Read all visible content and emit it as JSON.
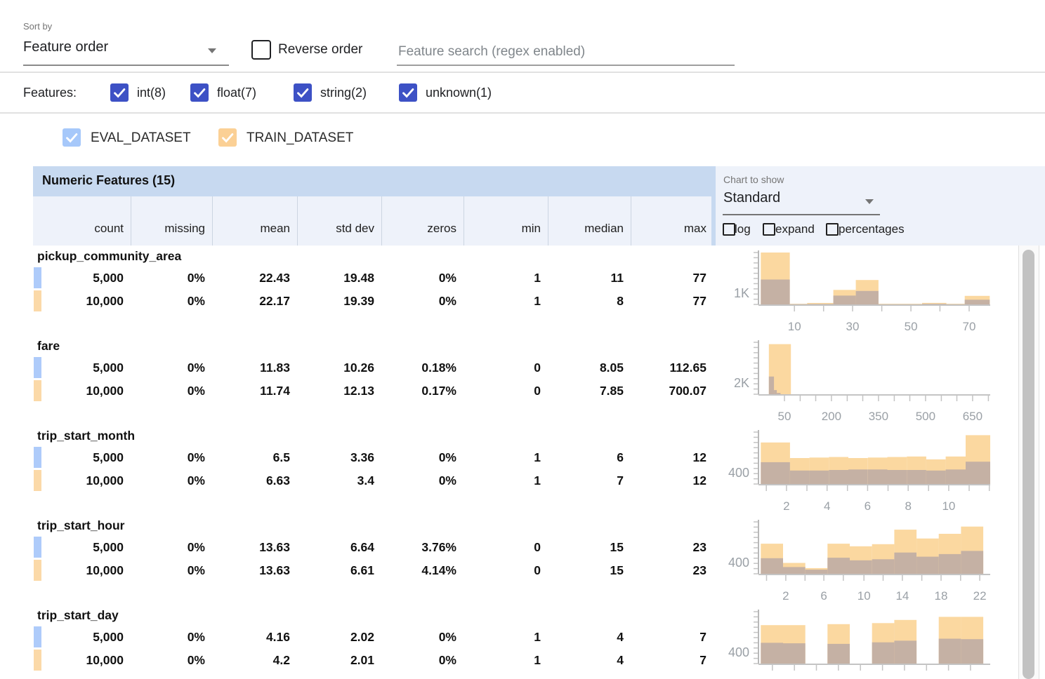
{
  "sort": {
    "label": "Sort by",
    "value": "Feature order"
  },
  "reverse_order_label": "Reverse order",
  "search_placeholder": "Feature search (regex enabled)",
  "filters": {
    "label": "Features:",
    "types": [
      {
        "label": "int(8)",
        "checked": true
      },
      {
        "label": "float(7)",
        "checked": true
      },
      {
        "label": "string(2)",
        "checked": true
      },
      {
        "label": "unknown(1)",
        "checked": true
      }
    ]
  },
  "datasets": [
    {
      "name": "EVAL_DATASET",
      "checkbox_color": "#a6c8fa",
      "swatch_color": "#aecbfa",
      "checked": true
    },
    {
      "name": "TRAIN_DATASET",
      "checkbox_color": "#fbd095",
      "swatch_color": "#fbd9a8",
      "checked": true
    }
  ],
  "table": {
    "title": "Numeric Features (15)",
    "columns": [
      "count",
      "missing",
      "mean",
      "std dev",
      "zeros",
      "min",
      "median",
      "max"
    ],
    "rows": [
      {
        "feature": "pickup_community_area",
        "eval": [
          "5,000",
          "0%",
          "22.43",
          "19.48",
          "0%",
          "1",
          "11",
          "77"
        ],
        "train": [
          "10,000",
          "0%",
          "22.17",
          "19.39",
          "0%",
          "1",
          "8",
          "77"
        ]
      },
      {
        "feature": "fare",
        "eval": [
          "5,000",
          "0%",
          "11.83",
          "10.26",
          "0.18%",
          "0",
          "8.05",
          "112.65"
        ],
        "train": [
          "10,000",
          "0%",
          "11.74",
          "12.13",
          "0.17%",
          "0",
          "7.85",
          "700.07"
        ]
      },
      {
        "feature": "trip_start_month",
        "eval": [
          "5,000",
          "0%",
          "6.5",
          "3.36",
          "0%",
          "1",
          "6",
          "12"
        ],
        "train": [
          "10,000",
          "0%",
          "6.63",
          "3.4",
          "0%",
          "1",
          "7",
          "12"
        ]
      },
      {
        "feature": "trip_start_hour",
        "eval": [
          "5,000",
          "0%",
          "13.63",
          "6.64",
          "3.76%",
          "0",
          "15",
          "23"
        ],
        "train": [
          "10,000",
          "0%",
          "13.63",
          "6.61",
          "4.14%",
          "0",
          "15",
          "23"
        ]
      },
      {
        "feature": "trip_start_day",
        "eval": [
          "5,000",
          "0%",
          "4.16",
          "2.02",
          "0%",
          "1",
          "4",
          "7"
        ],
        "train": [
          "10,000",
          "0%",
          "4.2",
          "2.01",
          "0%",
          "1",
          "4",
          "7"
        ]
      }
    ]
  },
  "chart_controls": {
    "label": "Chart to show",
    "value": "Standard",
    "options": [
      {
        "label": "log",
        "checked": false
      },
      {
        "label": "expand",
        "checked": false
      },
      {
        "label": "percentages",
        "checked": false
      }
    ]
  },
  "colors": {
    "indigo_checkbox": "#3d51c5",
    "bar_train_orange": "#fbd8a0",
    "bar_overlap": "#c5b1a4",
    "axis_gray": "#c4c4c4",
    "tick_text_gray": "#9aa0a6",
    "header_blue": "#c7d9f0",
    "band_blue": "#eef2fa"
  },
  "chart_data": [
    {
      "feature": "pickup_community_area",
      "type": "histogram-overlay",
      "ylabel": "1K",
      "xlabels": [
        {
          "p": 0.155,
          "t": "10"
        },
        {
          "p": 0.406,
          "t": "30"
        },
        {
          "p": 0.658,
          "t": "50"
        },
        {
          "p": 0.909,
          "t": "70"
        }
      ],
      "xticks": [
        0.155,
        0.281,
        0.406,
        0.532,
        0.658,
        0.783,
        0.909
      ],
      "bars": [
        {
          "x": 0.01,
          "w": 0.125,
          "t": 1.0,
          "e": 0.48
        },
        {
          "x": 0.135,
          "w": 0.075,
          "t": 0.012,
          "e": 0.005
        },
        {
          "x": 0.21,
          "w": 0.113,
          "t": 0.028,
          "e": 0.01
        },
        {
          "x": 0.323,
          "w": 0.097,
          "t": 0.28,
          "e": 0.17
        },
        {
          "x": 0.42,
          "w": 0.098,
          "t": 0.47,
          "e": 0.26
        },
        {
          "x": 0.518,
          "w": 0.188,
          "t": 0.012,
          "e": 0.004
        },
        {
          "x": 0.706,
          "w": 0.105,
          "t": 0.03,
          "e": 0.012
        },
        {
          "x": 0.811,
          "w": 0.079,
          "t": 0.012,
          "e": 0.004
        },
        {
          "x": 0.89,
          "w": 0.108,
          "t": 0.165,
          "e": 0.09
        }
      ]
    },
    {
      "feature": "fare",
      "type": "histogram-overlay",
      "ylabel": "2K",
      "xlabels": [
        {
          "p": 0.112,
          "t": "50"
        },
        {
          "p": 0.315,
          "t": "200"
        },
        {
          "p": 0.518,
          "t": "350"
        },
        {
          "p": 0.721,
          "t": "500"
        },
        {
          "p": 0.924,
          "t": "650"
        }
      ],
      "xticks": [
        0.112,
        0.18,
        0.247,
        0.315,
        0.383,
        0.45,
        0.518,
        0.586,
        0.653,
        0.721,
        0.789,
        0.856,
        0.924,
        0.992
      ],
      "bars": [
        {
          "x": 0.045,
          "w": 0.095,
          "t": 0.965,
          "e": 0
        }
      ],
      "ebars": [
        {
          "x": 0.045,
          "w": 0.022,
          "h": 0.34
        },
        {
          "x": 0.067,
          "w": 0.012,
          "h": 0.08
        },
        {
          "x": 0.079,
          "w": 0.016,
          "h": 0.025
        }
      ]
    },
    {
      "feature": "trip_start_month",
      "type": "histogram-overlay",
      "ylabel": "400",
      "xlabels": [
        {
          "p": 0.121,
          "t": "2"
        },
        {
          "p": 0.296,
          "t": "4"
        },
        {
          "p": 0.471,
          "t": "6"
        },
        {
          "p": 0.646,
          "t": "8"
        },
        {
          "p": 0.821,
          "t": "10"
        }
      ],
      "xticks": [
        0.034,
        0.121,
        0.209,
        0.296,
        0.384,
        0.471,
        0.559,
        0.646,
        0.734,
        0.821,
        0.909,
        0.996
      ],
      "bars": [
        {
          "x": 0.01,
          "w": 0.126,
          "t": 0.8,
          "e": 0.42
        },
        {
          "x": 0.136,
          "w": 0.084,
          "t": 0.5,
          "e": 0.26
        },
        {
          "x": 0.22,
          "w": 0.084,
          "t": 0.51,
          "e": 0.26
        },
        {
          "x": 0.304,
          "w": 0.084,
          "t": 0.52,
          "e": 0.27
        },
        {
          "x": 0.388,
          "w": 0.084,
          "t": 0.5,
          "e": 0.28
        },
        {
          "x": 0.472,
          "w": 0.084,
          "t": 0.51,
          "e": 0.28
        },
        {
          "x": 0.556,
          "w": 0.084,
          "t": 0.52,
          "e": 0.27
        },
        {
          "x": 0.64,
          "w": 0.084,
          "t": 0.53,
          "e": 0.27
        },
        {
          "x": 0.724,
          "w": 0.084,
          "t": 0.475,
          "e": 0.26
        },
        {
          "x": 0.808,
          "w": 0.086,
          "t": 0.53,
          "e": 0.28
        },
        {
          "x": 0.894,
          "w": 0.106,
          "t": 0.94,
          "e": 0.43
        }
      ]
    },
    {
      "feature": "trip_start_hour",
      "type": "histogram-overlay",
      "ylabel": "400",
      "xlabels": [
        {
          "p": 0.118,
          "t": "2"
        },
        {
          "p": 0.282,
          "t": "6"
        },
        {
          "p": 0.455,
          "t": "10"
        },
        {
          "p": 0.621,
          "t": "14"
        },
        {
          "p": 0.788,
          "t": "18"
        },
        {
          "p": 0.955,
          "t": "22"
        }
      ],
      "xticks": [
        0.035,
        0.118,
        0.201,
        0.282,
        0.366,
        0.455,
        0.538,
        0.621,
        0.705,
        0.788,
        0.872,
        0.955
      ],
      "bars": [
        {
          "x": 0.01,
          "w": 0.096,
          "t": 0.58,
          "e": 0.3
        },
        {
          "x": 0.106,
          "w": 0.096,
          "t": 0.21,
          "e": 0.13
        },
        {
          "x": 0.202,
          "w": 0.096,
          "t": 0.11,
          "e": 0.08
        },
        {
          "x": 0.298,
          "w": 0.096,
          "t": 0.58,
          "e": 0.31
        },
        {
          "x": 0.394,
          "w": 0.096,
          "t": 0.53,
          "e": 0.26
        },
        {
          "x": 0.49,
          "w": 0.096,
          "t": 0.57,
          "e": 0.28
        },
        {
          "x": 0.586,
          "w": 0.096,
          "t": 0.85,
          "e": 0.41
        },
        {
          "x": 0.682,
          "w": 0.096,
          "t": 0.68,
          "e": 0.33
        },
        {
          "x": 0.778,
          "w": 0.096,
          "t": 0.77,
          "e": 0.38
        },
        {
          "x": 0.874,
          "w": 0.096,
          "t": 0.91,
          "e": 0.44
        }
      ]
    },
    {
      "feature": "trip_start_day",
      "type": "histogram-overlay",
      "ylabel": "400",
      "xlabels": [],
      "xticks": [
        0.06,
        0.155,
        0.25,
        0.345,
        0.44,
        0.535,
        0.63,
        0.725,
        0.82,
        0.915
      ],
      "bars": [
        {
          "x": 0.01,
          "w": 0.096,
          "t": 0.74,
          "e": 0.4
        },
        {
          "x": 0.106,
          "w": 0.096,
          "t": 0.74,
          "e": 0.39
        },
        {
          "x": 0.298,
          "w": 0.096,
          "t": 0.76,
          "e": 0.38
        },
        {
          "x": 0.49,
          "w": 0.096,
          "t": 0.78,
          "e": 0.41
        },
        {
          "x": 0.586,
          "w": 0.096,
          "t": 0.84,
          "e": 0.44
        },
        {
          "x": 0.778,
          "w": 0.096,
          "t": 0.9,
          "e": 0.48
        },
        {
          "x": 0.874,
          "w": 0.096,
          "t": 0.9,
          "e": 0.47
        }
      ]
    }
  ]
}
